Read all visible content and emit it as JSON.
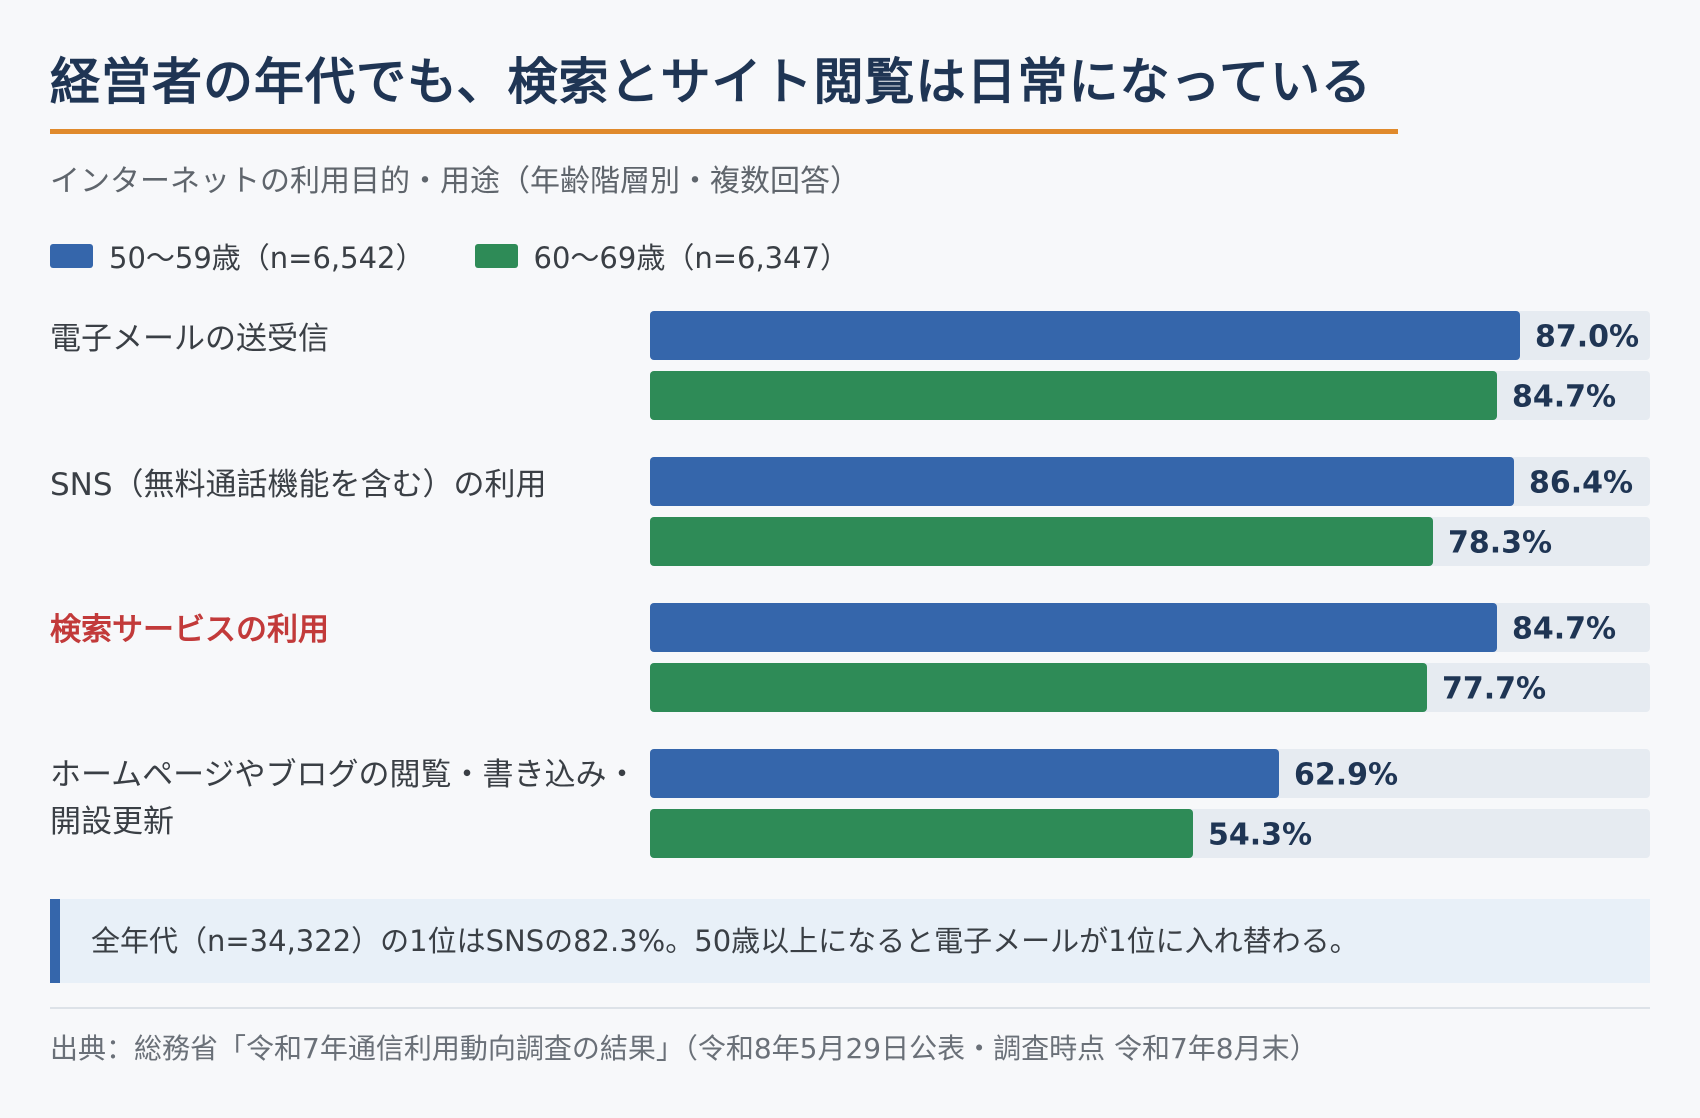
{
  "header": {
    "title": "経営者の年代でも、検索とサイト閲覧は日常になっている",
    "subtitle": "インターネットの利用目的・用途（年齢階層別・複数回答）"
  },
  "colors": {
    "series1": "#3566ab",
    "series2": "#2e8b57",
    "track": "#e6ebf1",
    "highlight": "#c23a3a",
    "accent_rule": "#e08a2c"
  },
  "chart_data": {
    "type": "bar",
    "orientation": "horizontal",
    "unit": "%",
    "xlim": [
      0,
      100
    ],
    "grid": false,
    "legend_position": "top-left",
    "categories": [
      "電子メールの送受信",
      "SNS（無料通話機能を含む）の利用",
      "検索サービスの利用",
      "ホームページやブログの閲覧・書き込み・開設更新"
    ],
    "highlight_category_index": 2,
    "series": [
      {
        "name": "50〜59歳（n=6,542）",
        "values": [
          87.0,
          86.4,
          84.7,
          62.9
        ],
        "labels": [
          "87.0%",
          "86.4%",
          "84.7%",
          "62.9%"
        ]
      },
      {
        "name": "60〜69歳（n=6,347）",
        "values": [
          84.7,
          78.3,
          77.7,
          54.3
        ],
        "labels": [
          "84.7%",
          "78.3%",
          "77.7%",
          "54.3%"
        ]
      }
    ]
  },
  "note": "全年代（n=34,322）の1位はSNSの82.3%。50歳以上になると電子メールが1位に入れ替わる。",
  "source": "出典：総務省「令和7年通信利用動向調査の結果」（令和8年5月29日公表・調査時点 令和7年8月末）"
}
